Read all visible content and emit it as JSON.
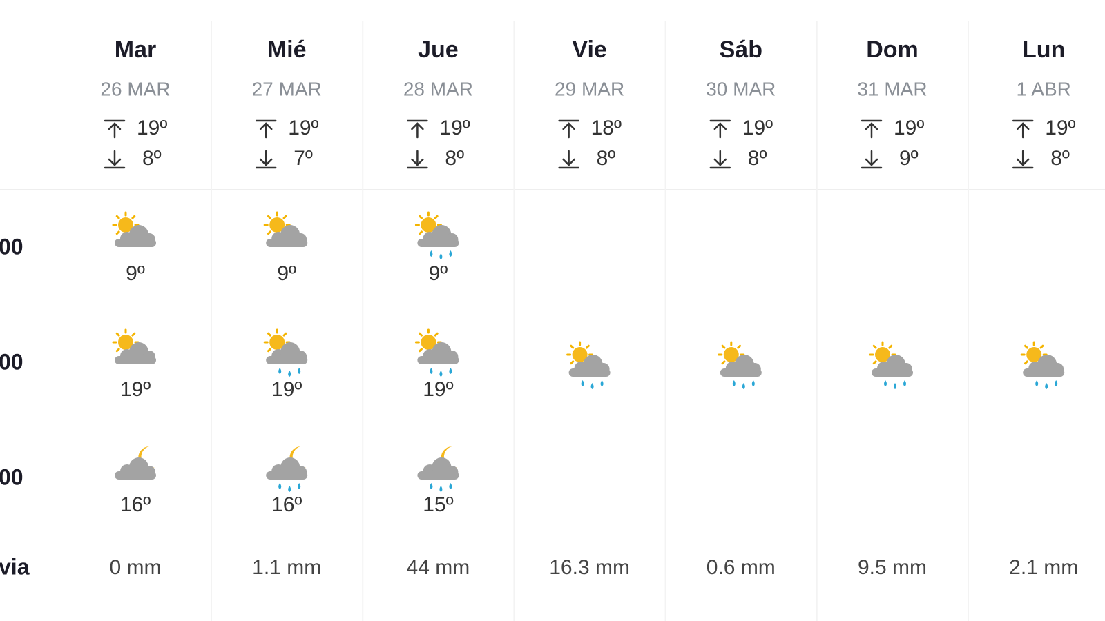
{
  "row_labels": [
    "00",
    "00",
    "00",
    "via"
  ],
  "days": [
    {
      "name": "Mar",
      "date": "26 MAR",
      "max": "19º",
      "min": "8º",
      "periods": [
        {
          "icon": "sun-cloud",
          "temp": "9º"
        },
        {
          "icon": "sun-cloud",
          "temp": "19º"
        },
        {
          "icon": "moon-cloud",
          "temp": "16º"
        }
      ],
      "rain": "0 mm"
    },
    {
      "name": "Mié",
      "date": "27 MAR",
      "max": "19º",
      "min": "7º",
      "periods": [
        {
          "icon": "sun-cloud",
          "temp": "9º"
        },
        {
          "icon": "sun-cloud-rain",
          "temp": "19º"
        },
        {
          "icon": "moon-cloud-rain",
          "temp": "16º"
        }
      ],
      "rain": "1.1 mm"
    },
    {
      "name": "Jue",
      "date": "28 MAR",
      "max": "19º",
      "min": "8º",
      "periods": [
        {
          "icon": "sun-cloud-rain",
          "temp": "9º"
        },
        {
          "icon": "sun-cloud-rain",
          "temp": "19º"
        },
        {
          "icon": "moon-cloud-rain",
          "temp": "15º"
        }
      ],
      "rain": "44 mm"
    },
    {
      "name": "Vie",
      "date": "29 MAR",
      "max": "18º",
      "min": "8º",
      "periods": [
        null,
        {
          "icon": "sun-cloud-rain"
        },
        null
      ],
      "rain": "16.3 mm"
    },
    {
      "name": "Sáb",
      "date": "30 MAR",
      "max": "19º",
      "min": "8º",
      "periods": [
        null,
        {
          "icon": "sun-cloud-rain"
        },
        null
      ],
      "rain": "0.6 mm"
    },
    {
      "name": "Dom",
      "date": "31 MAR",
      "max": "19º",
      "min": "9º",
      "periods": [
        null,
        {
          "icon": "sun-cloud-rain"
        },
        null
      ],
      "rain": "9.5 mm"
    },
    {
      "name": "Lun",
      "date": "1 ABR",
      "max": "19º",
      "min": "8º",
      "periods": [
        null,
        {
          "icon": "sun-cloud-rain"
        },
        null
      ],
      "rain": "2.1 mm"
    }
  ]
}
